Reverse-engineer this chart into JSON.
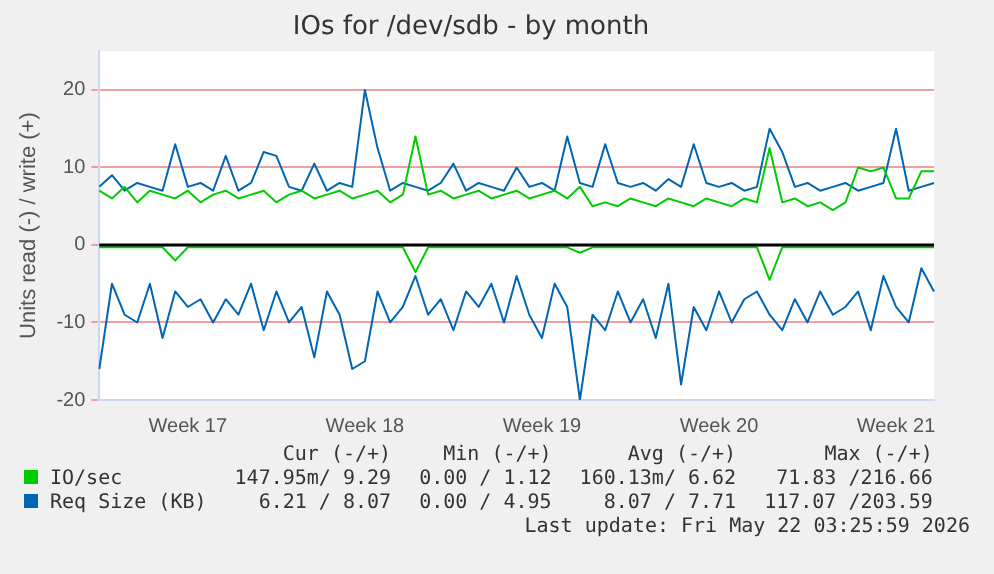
{
  "chart_data": {
    "type": "line",
    "title": "IOs for /dev/sdb - by month",
    "ylabel": "Units read (-) / write (+)",
    "categories": [
      null,
      null,
      null,
      null,
      null,
      null,
      null,
      "Week 17",
      null,
      null,
      null,
      null,
      null,
      null,
      null,
      null,
      null,
      null,
      null,
      null,
      null,
      "Week 18",
      null,
      null,
      null,
      null,
      null,
      null,
      null,
      null,
      null,
      null,
      null,
      null,
      null,
      "Week 19",
      null,
      null,
      null,
      null,
      null,
      null,
      null,
      null,
      null,
      null,
      null,
      null,
      null,
      "Week 20",
      null,
      null,
      null,
      null,
      null,
      null,
      null,
      null,
      null,
      null,
      null,
      null,
      null,
      "Week 21",
      null,
      null,
      null
    ],
    "series": [
      {
        "name": "IO/sec",
        "color": "#00cc00",
        "values": [
          7,
          6,
          7.5,
          5.5,
          7,
          6.5,
          6,
          7,
          5.5,
          6.5,
          7,
          6,
          6.5,
          7,
          5.5,
          6.5,
          7,
          6,
          6.5,
          7,
          6,
          6.5,
          7,
          5.5,
          6.5,
          14,
          6.5,
          7,
          6,
          6.5,
          7,
          6,
          6.5,
          7,
          6,
          6.5,
          7,
          6,
          7.5,
          5,
          5.5,
          5,
          6,
          5.5,
          5,
          6,
          5.5,
          5,
          6,
          5.5,
          5,
          6,
          5.5,
          12.5,
          5.5,
          6,
          5,
          5.5,
          4.5,
          5.5,
          10,
          9.5,
          10,
          6,
          6,
          9.5,
          9.5
        ]
      },
      {
        "color": "#00cc00",
        "values": [
          -0.3,
          -0.3,
          -0.3,
          -0.3,
          -0.3,
          -0.3,
          -2,
          -0.3,
          -0.3,
          -0.3,
          -0.3,
          -0.3,
          -0.3,
          -0.3,
          -0.3,
          -0.3,
          -0.3,
          -0.3,
          -0.3,
          -0.3,
          -0.3,
          -0.3,
          -0.3,
          -0.3,
          -0.3,
          -3.5,
          -0.3,
          -0.3,
          -0.3,
          -0.3,
          -0.3,
          -0.3,
          -0.3,
          -0.3,
          -0.3,
          -0.3,
          -0.3,
          -0.3,
          -1,
          -0.3,
          -0.3,
          -0.3,
          -0.3,
          -0.3,
          -0.3,
          -0.3,
          -0.3,
          -0.3,
          -0.3,
          -0.3,
          -0.3,
          -0.3,
          -0.3,
          -4.5,
          -0.3,
          -0.3,
          -0.3,
          -0.3,
          -0.3,
          -0.3,
          -0.3,
          -0.3,
          -0.3,
          -0.3,
          -0.3,
          -0.3,
          -0.3
        ]
      },
      {
        "name": "Req Size (KB)",
        "color": "#0066b3",
        "values": [
          7.5,
          9,
          7,
          8,
          7.5,
          7,
          13,
          7.5,
          8,
          7,
          11.5,
          7,
          8,
          12,
          11.5,
          7.5,
          7,
          10.5,
          7,
          8,
          7.5,
          20,
          12.5,
          7,
          8,
          7.5,
          7,
          8,
          10.5,
          7,
          8,
          7.5,
          7,
          10,
          7.5,
          8,
          7,
          14,
          8,
          7.5,
          13,
          8,
          7.5,
          8,
          7,
          8.5,
          7.5,
          13,
          8,
          7.5,
          8,
          7,
          7.5,
          15,
          12,
          7.5,
          8,
          7,
          7.5,
          8,
          7,
          7.5,
          8,
          15,
          7,
          7.5,
          8
        ]
      },
      {
        "color": "#0066b3",
        "values": [
          -16,
          -5,
          -9,
          -10,
          -5,
          -12,
          -6,
          -8,
          -7,
          -10,
          -7,
          -9,
          -5,
          -11,
          -6,
          -10,
          -8,
          -14.5,
          -6,
          -9,
          -16,
          -15,
          -6,
          -10,
          -8,
          -4,
          -9,
          -7,
          -11,
          -6,
          -8,
          -5,
          -10,
          -4,
          -9,
          -12,
          -5,
          -8,
          -20,
          -9,
          -11,
          -6,
          -10,
          -7,
          -12,
          -5,
          -18,
          -8,
          -11,
          -6,
          -10,
          -7,
          -6,
          -9,
          -11,
          -7,
          -10,
          -6,
          -9,
          -8,
          -6,
          -11,
          -4,
          -8,
          -10,
          -3,
          -6
        ]
      }
    ],
    "ylim": [
      -20,
      25
    ],
    "yticks": [
      -20,
      -10,
      0,
      10,
      20
    ],
    "grid": "y",
    "legend": "bottom",
    "marker": "none",
    "line_style": "solid",
    "ref_lines": [
      {
        "axis": "y",
        "value": 0,
        "color": "#000000"
      }
    ],
    "annotations": [
      "Cur (-/+)",
      "Min (-/+)",
      "Avg (-/+)",
      "Max (-/+)",
      "147.95m/ 9.29",
      "0.00 / 1.12",
      "160.13m/ 6.62",
      "71.83 /216.66",
      "6.21 / 8.07",
      "0.00 / 4.95",
      "8.07 / 7.71",
      "117.07 /203.59",
      "Last update: Fri May 22 03:25:59 2026"
    ]
  }
}
